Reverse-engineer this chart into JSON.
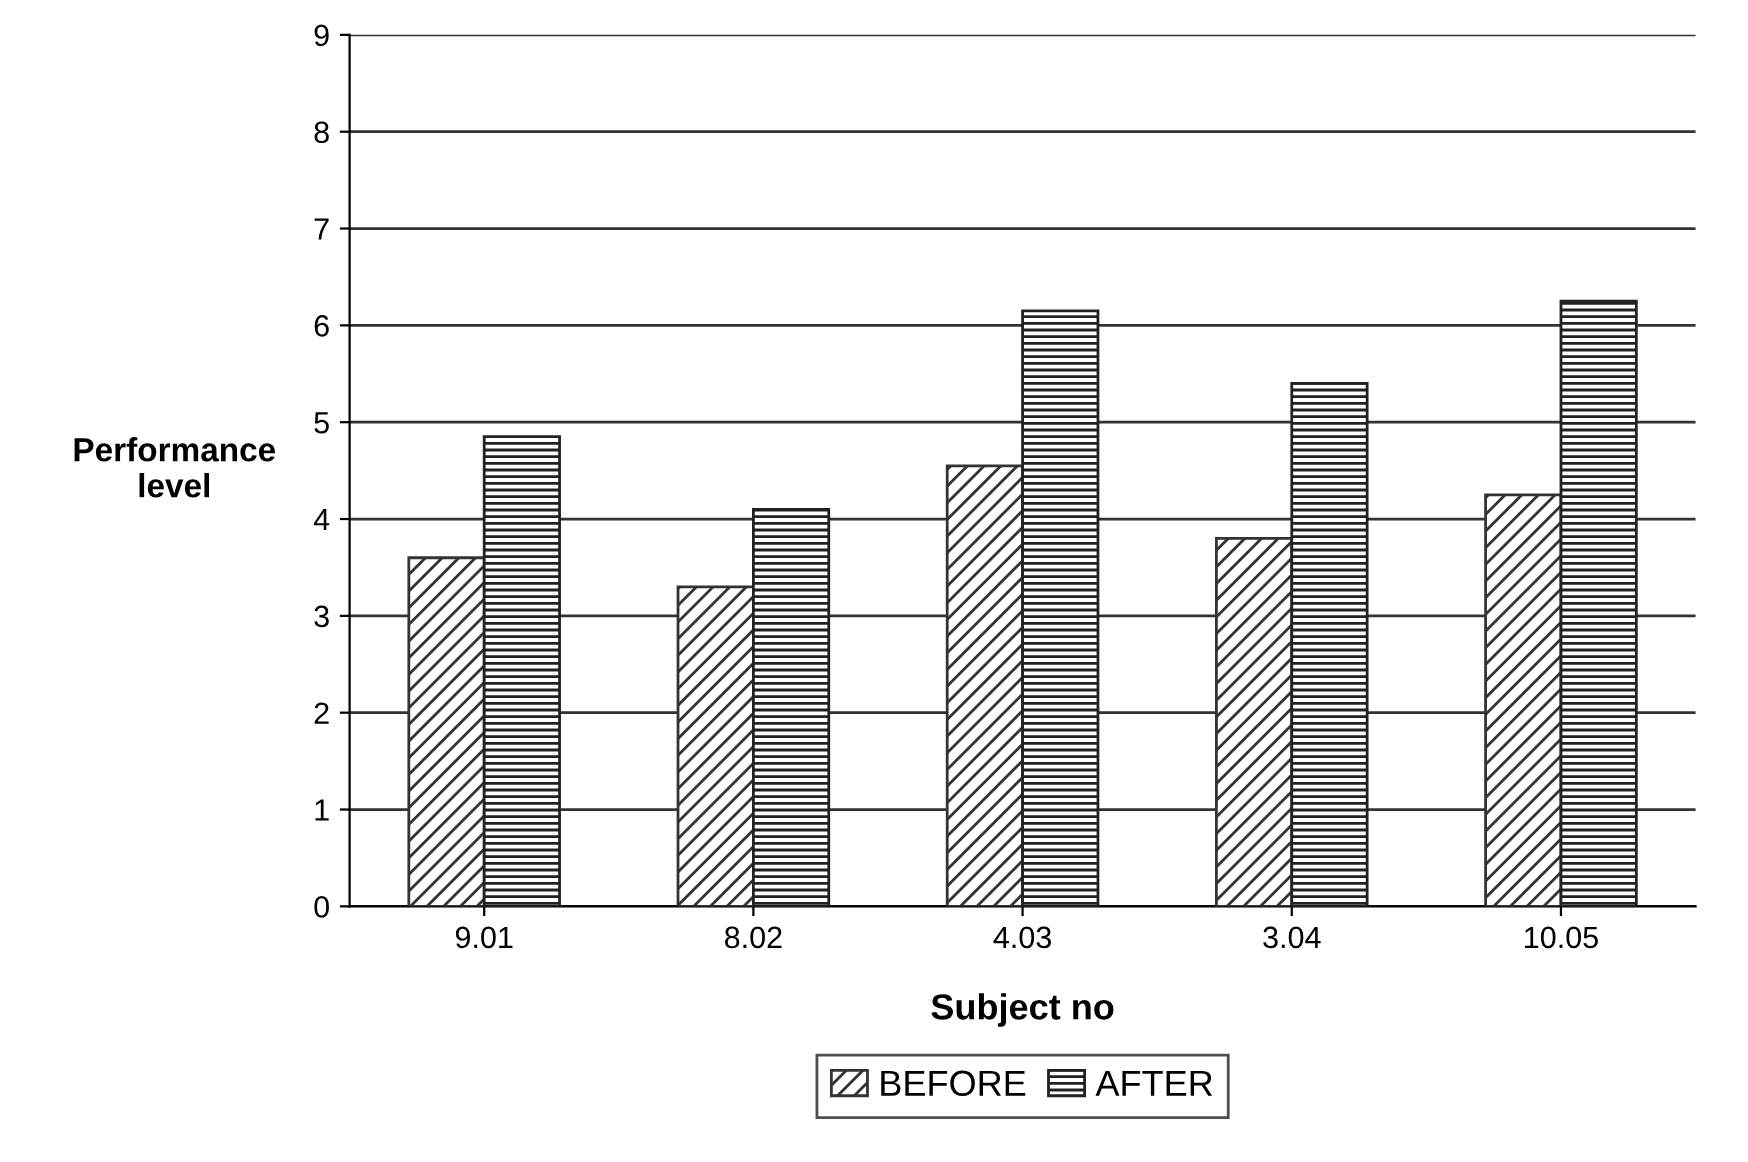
{
  "chart_data": {
    "type": "bar",
    "xlabel": "Subject no",
    "ylabel": "Performance\nlevel",
    "categories": [
      "9.01",
      "8.02",
      "4.03",
      "3.04",
      "10.05"
    ],
    "series": [
      {
        "name": "BEFORE",
        "color": "#333333",
        "values": [
          3.6,
          3.3,
          4.55,
          3.8,
          4.25
        ]
      },
      {
        "name": "AFTER",
        "color": "#222222",
        "values": [
          4.85,
          4.1,
          6.15,
          5.4,
          6.25
        ]
      }
    ],
    "ylim": [
      0,
      9
    ],
    "yticks": [
      0,
      1,
      2,
      3,
      4,
      5,
      6,
      7,
      8,
      9
    ],
    "grid": "y",
    "legend": "bottom"
  }
}
